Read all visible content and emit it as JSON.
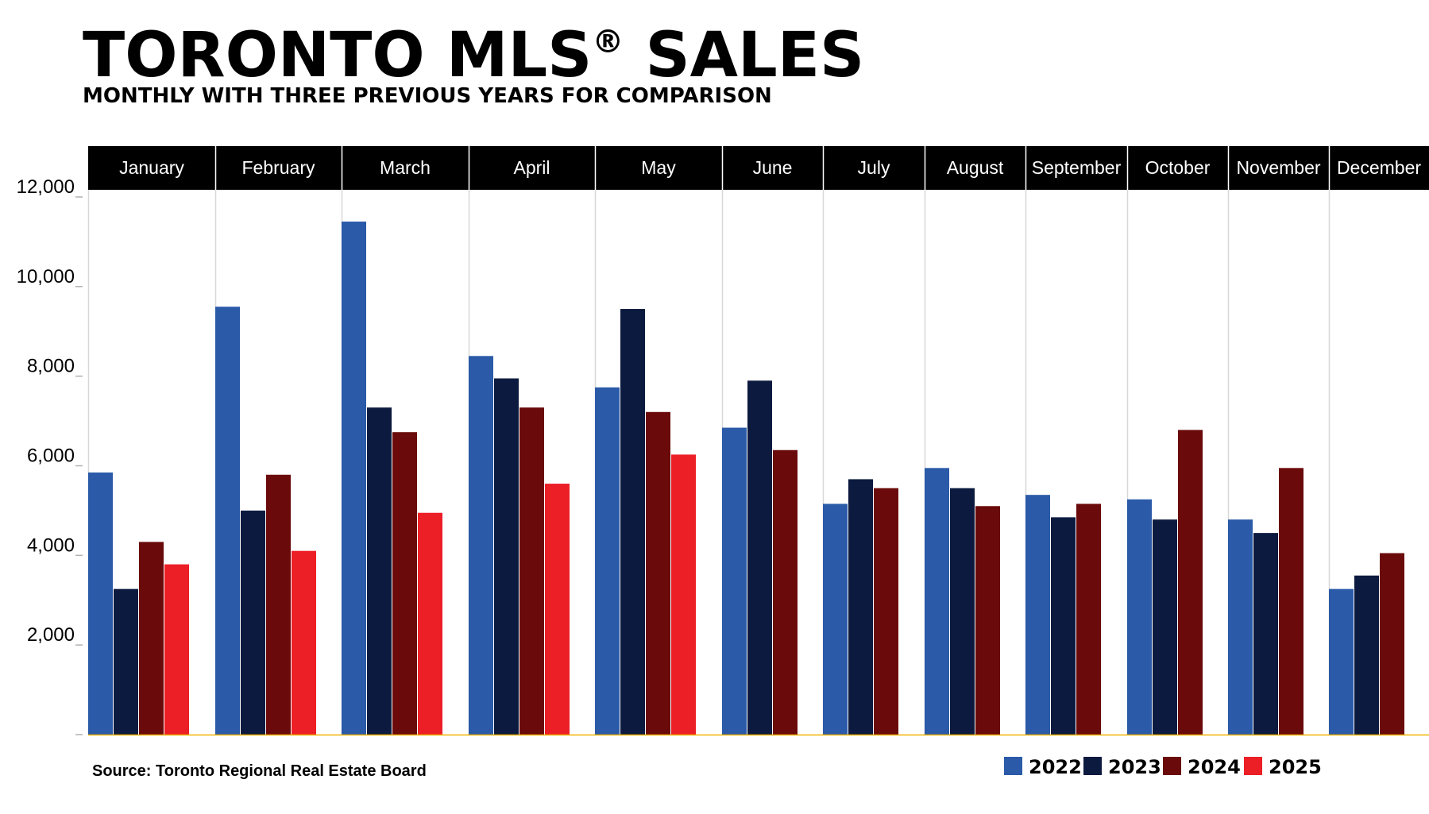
{
  "chart_data": {
    "type": "bar",
    "title": "TORONTO MLS",
    "title_mark": "®",
    "title_suffix": " SALES",
    "subtitle": "MONTHLY WITH THREE PREVIOUS YEARS FOR COMPARISON",
    "source": "Source: Toronto Regional Real Estate Board",
    "xlabel": "",
    "ylabel": "",
    "ylim": [
      0,
      12000
    ],
    "yticks": [
      2000,
      4000,
      6000,
      8000,
      10000,
      12000
    ],
    "ytick_labels": [
      "2,000",
      "4,000",
      "6,000",
      "8,000",
      "10,000",
      "12,000"
    ],
    "grid": "vertical month separators",
    "legend_position": "bottom-right",
    "categories": [
      "January",
      "February",
      "March",
      "April",
      "May",
      "June",
      "July",
      "August",
      "September",
      "October",
      "November",
      "December"
    ],
    "series": [
      {
        "name": "2022",
        "color": "#2b5aa8",
        "values": [
          5850,
          9550,
          11450,
          8450,
          7750,
          6850,
          5150,
          5950,
          5350,
          5250,
          4800,
          3250
        ]
      },
      {
        "name": "2023",
        "color": "#0c1a3f",
        "values": [
          3250,
          5000,
          7300,
          7950,
          9500,
          7900,
          5700,
          5500,
          4850,
          4800,
          4500,
          3550
        ]
      },
      {
        "name": "2024",
        "color": "#6a0a0a",
        "values": [
          4300,
          5800,
          6750,
          7300,
          7200,
          6350,
          5500,
          5100,
          5150,
          6800,
          5950,
          4050
        ]
      },
      {
        "name": "2025",
        "color": "#ec1f27",
        "values": [
          3800,
          4100,
          4950,
          5600,
          6250,
          null,
          null,
          null,
          null,
          null,
          null,
          null
        ]
      }
    ],
    "colors": {
      "header_band": "#000000",
      "separator": "#d8d8d8",
      "baseline": "#f0b400"
    }
  }
}
